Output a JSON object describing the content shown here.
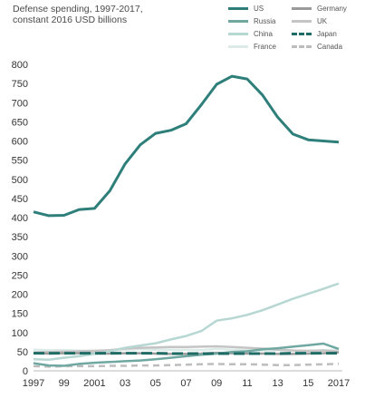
{
  "chart_data": {
    "type": "line",
    "title_lines": [
      "Defense spending, 1997-2017,",
      "constant 2016 USD billions"
    ],
    "x": [
      1997,
      1998,
      1999,
      2000,
      2001,
      2002,
      2003,
      2004,
      2005,
      2006,
      2007,
      2008,
      2009,
      2010,
      2011,
      2012,
      2013,
      2014,
      2015,
      2016,
      2017
    ],
    "x_tick_values": [
      1997,
      1999,
      2001,
      2003,
      2005,
      2007,
      2009,
      2011,
      2013,
      2015,
      2017
    ],
    "x_tick_labels": [
      "1997",
      "99",
      "2001",
      "03",
      "05",
      "07",
      "09",
      "11",
      "13",
      "15",
      "2017"
    ],
    "xlim": [
      1997,
      2017
    ],
    "ylim": [
      0,
      800
    ],
    "y_ticks": [
      0,
      50,
      100,
      150,
      200,
      250,
      300,
      350,
      400,
      450,
      500,
      550,
      600,
      650,
      700,
      750,
      800
    ],
    "grid": false,
    "legend_position": "top-right",
    "series": [
      {
        "name": "US",
        "color": "#2e7f7a",
        "dash": "solid",
        "width": 3,
        "values": [
          415,
          405,
          406,
          421,
          424,
          470,
          540,
          590,
          620,
          628,
          645,
          695,
          748,
          769,
          762,
          720,
          662,
          618,
          603,
          600,
          597
        ]
      },
      {
        "name": "Russia",
        "color": "#6fa7a1",
        "dash": "solid",
        "width": 2.5,
        "values": [
          20,
          14,
          13,
          18,
          21,
          23,
          25,
          27,
          30,
          34,
          38,
          42,
          45,
          49,
          51,
          56,
          59,
          63,
          67,
          71,
          57
        ]
      },
      {
        "name": "China",
        "color": "#b7d7d2",
        "dash": "solid",
        "width": 2.5,
        "values": [
          30,
          29,
          34,
          38,
          44,
          51,
          60,
          66,
          72,
          82,
          91,
          104,
          131,
          137,
          146,
          158,
          173,
          188,
          201,
          214,
          228
        ]
      },
      {
        "name": "France",
        "color": "#dcebe8",
        "dash": "solid",
        "width": 2.5,
        "values": [
          55,
          54,
          54,
          53,
          52,
          53,
          55,
          56,
          55,
          55,
          55,
          54,
          57,
          55,
          54,
          53,
          54,
          53,
          52,
          54,
          55
        ]
      },
      {
        "name": "Germany",
        "color": "#9b9b9b",
        "dash": "solid",
        "width": 2.5,
        "values": [
          46,
          45,
          46,
          46,
          45,
          45,
          46,
          46,
          45,
          44,
          44,
          45,
          47,
          46,
          45,
          45,
          44,
          44,
          45,
          46,
          48
        ]
      },
      {
        "name": "UK",
        "color": "#c4c4c4",
        "dash": "solid",
        "width": 2.5,
        "values": [
          48,
          49,
          50,
          51,
          52,
          54,
          58,
          60,
          61,
          62,
          62,
          63,
          64,
          62,
          60,
          58,
          55,
          53,
          52,
          53,
          50
        ]
      },
      {
        "name": "Japan",
        "color": "#1f6b66",
        "dash": "long",
        "width": 3,
        "values": [
          46,
          46,
          46,
          46,
          46,
          46,
          46,
          46,
          46,
          45,
          45,
          45,
          45,
          45,
          45,
          45,
          45,
          46,
          46,
          46,
          46
        ]
      },
      {
        "name": "Canada",
        "color": "#bdbdbd",
        "dash": "short",
        "width": 2.5,
        "values": [
          12,
          11,
          12,
          12,
          12,
          13,
          13,
          14,
          14,
          15,
          16,
          17,
          18,
          17,
          17,
          16,
          15,
          15,
          16,
          17,
          18
        ]
      }
    ]
  }
}
